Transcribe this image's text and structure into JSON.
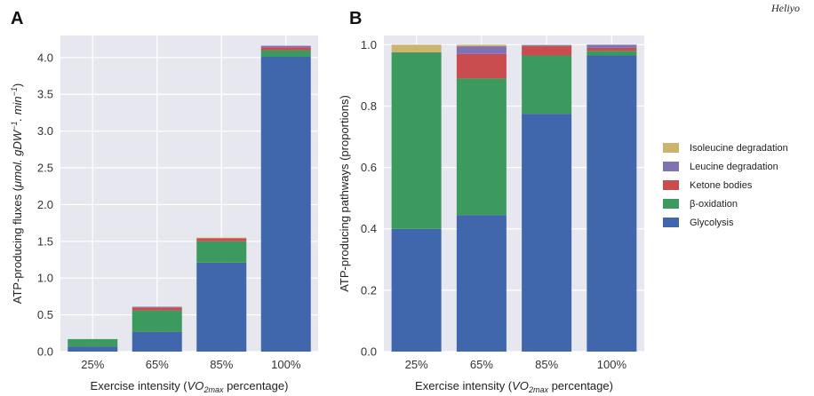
{
  "corner_label": "Heliyo",
  "colors": {
    "background": "#e7e7f0",
    "grid": "#ffffff",
    "Glycolysis": "#4067ac",
    "β-oxidation": "#3d9a5f",
    "Ketone bodies": "#c94c4f",
    "Leucine degradation": "#8172b2",
    "Isoleucine degradation": "#ccb46f"
  },
  "chart_data": [
    {
      "panel_label": "A",
      "type": "bar",
      "stacked": true,
      "categories": [
        "25%",
        "65%",
        "85%",
        "100%"
      ],
      "xlabel_parts": [
        "Exercise intensity (",
        "VO",
        "2max",
        " percentage)"
      ],
      "ylabel_parts": [
        "ATP-producing fluxes (",
        "μmol. gDW",
        "−1",
        ". min",
        "−1",
        ")"
      ],
      "ylim": [
        0,
        4.3
      ],
      "yticks": [
        0.0,
        0.5,
        1.0,
        1.5,
        2.0,
        2.5,
        3.0,
        3.5,
        4.0
      ],
      "ytick_labels": [
        "0.0",
        "0.5",
        "1.0",
        "1.5",
        "2.0",
        "2.5",
        "3.0",
        "3.5",
        "4.0"
      ],
      "grid": true,
      "series": [
        {
          "name": "Glycolysis",
          "values": [
            0.07,
            0.27,
            1.21,
            4.01
          ]
        },
        {
          "name": "β-oxidation",
          "values": [
            0.1,
            0.29,
            0.29,
            0.09
          ]
        },
        {
          "name": "Ketone bodies",
          "values": [
            0.0,
            0.04,
            0.04,
            0.04
          ]
        },
        {
          "name": "Leucine degradation",
          "values": [
            0.0,
            0.01,
            0.0,
            0.02
          ]
        },
        {
          "name": "Isoleucine degradation",
          "values": [
            0.0,
            0.0,
            0.01,
            0.0
          ]
        }
      ]
    },
    {
      "panel_label": "B",
      "type": "bar",
      "stacked": true,
      "categories": [
        "25%",
        "65%",
        "85%",
        "100%"
      ],
      "xlabel_parts": [
        "Exercise intensity (",
        "VO",
        "2max",
        " percentage)"
      ],
      "ylabel": "ATP-producing pathways (proportions)",
      "ylim": [
        0,
        1.03
      ],
      "yticks": [
        0.0,
        0.2,
        0.4,
        0.6,
        0.8,
        1.0
      ],
      "ytick_labels": [
        "0.0",
        "0.2",
        "0.4",
        "0.6",
        "0.8",
        "1.0"
      ],
      "grid": true,
      "legend_position": "right",
      "legend_order": [
        "Isoleucine degradation",
        "Leucine degradation",
        "Ketone bodies",
        "β-oxidation",
        "Glycolysis"
      ],
      "series": [
        {
          "name": "Glycolysis",
          "values": [
            0.4,
            0.445,
            0.775,
            0.965
          ]
        },
        {
          "name": "β-oxidation",
          "values": [
            0.575,
            0.445,
            0.19,
            0.015
          ]
        },
        {
          "name": "Ketone bodies",
          "values": [
            0.0,
            0.08,
            0.03,
            0.01
          ]
        },
        {
          "name": "Leucine degradation",
          "values": [
            0.0,
            0.025,
            0.003,
            0.01
          ]
        },
        {
          "name": "Isoleucine degradation",
          "values": [
            0.025,
            0.005,
            0.002,
            0.0
          ]
        }
      ]
    }
  ]
}
